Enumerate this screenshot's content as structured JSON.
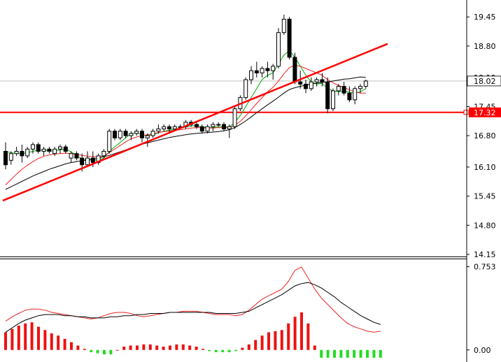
{
  "chart_data": [
    {
      "type": "candlestick",
      "yticks": [
        "19.45",
        "18.80",
        "18.10",
        "17.45",
        "16.80",
        "16.10",
        "15.45",
        "14.80",
        "14.15"
      ],
      "ylim": [
        14.15,
        19.75
      ],
      "current_price": {
        "label": "18.02",
        "value": 18.02
      },
      "horizontal_line": {
        "label": "17.32",
        "value": 17.32,
        "color": "#ff0000"
      },
      "trendline": {
        "color": "#ff0000",
        "from": [
          0,
          15.35
        ],
        "to": [
          70,
          18.85
        ]
      },
      "candles": [
        [
          16.45,
          16.65,
          16.05,
          16.15
        ],
        [
          16.25,
          16.45,
          16.15,
          16.4
        ],
        [
          16.4,
          16.55,
          16.35,
          16.45
        ],
        [
          16.45,
          16.6,
          16.2,
          16.35
        ],
        [
          16.35,
          16.55,
          16.3,
          16.5
        ],
        [
          16.5,
          16.65,
          16.4,
          16.6
        ],
        [
          16.6,
          16.65,
          16.4,
          16.45
        ],
        [
          16.45,
          16.55,
          16.35,
          16.5
        ],
        [
          16.5,
          16.55,
          16.4,
          16.45
        ],
        [
          16.4,
          16.55,
          16.35,
          16.5
        ],
        [
          16.5,
          16.6,
          16.4,
          16.55
        ],
        [
          16.55,
          16.6,
          16.4,
          16.45
        ],
        [
          16.3,
          16.45,
          16.2,
          16.4
        ],
        [
          16.4,
          16.45,
          16.25,
          16.3
        ],
        [
          16.3,
          16.4,
          16.0,
          16.15
        ],
        [
          16.15,
          16.45,
          16.1,
          16.3
        ],
        [
          16.3,
          16.45,
          16.1,
          16.2
        ],
        [
          16.2,
          16.4,
          16.15,
          16.35
        ],
        [
          16.35,
          16.5,
          16.3,
          16.45
        ],
        [
          16.45,
          16.95,
          16.4,
          16.9
        ],
        [
          16.9,
          16.95,
          16.7,
          16.75
        ],
        [
          16.75,
          16.95,
          16.7,
          16.9
        ],
        [
          16.9,
          16.95,
          16.75,
          16.8
        ],
        [
          16.8,
          16.9,
          16.7,
          16.85
        ],
        [
          16.85,
          16.95,
          16.8,
          16.9
        ],
        [
          16.9,
          16.95,
          16.65,
          16.75
        ],
        [
          16.75,
          16.85,
          16.55,
          16.8
        ],
        [
          16.8,
          16.95,
          16.75,
          16.9
        ],
        [
          16.9,
          17.05,
          16.85,
          16.95
        ],
        [
          16.95,
          17.05,
          16.9,
          17.0
        ],
        [
          17.0,
          17.05,
          16.85,
          16.95
        ],
        [
          16.95,
          17.05,
          16.9,
          17.0
        ],
        [
          17.0,
          17.05,
          16.95,
          17.0
        ],
        [
          17.0,
          17.15,
          16.95,
          17.1
        ],
        [
          17.1,
          17.15,
          17.0,
          17.05
        ],
        [
          17.05,
          17.1,
          16.95,
          17.0
        ],
        [
          17.0,
          17.05,
          16.85,
          16.9
        ],
        [
          16.9,
          17.05,
          16.85,
          17.0
        ],
        [
          17.0,
          17.1,
          16.9,
          17.05
        ],
        [
          17.05,
          17.1,
          17.0,
          17.05
        ],
        [
          17.05,
          17.1,
          16.9,
          16.95
        ],
        [
          16.95,
          17.05,
          16.75,
          17.0
        ],
        [
          17.0,
          17.45,
          16.95,
          17.4
        ],
        [
          17.4,
          17.7,
          17.35,
          17.65
        ],
        [
          17.65,
          18.1,
          17.6,
          18.05
        ],
        [
          18.05,
          18.35,
          17.95,
          18.25
        ],
        [
          18.25,
          18.45,
          18.1,
          18.2
        ],
        [
          18.2,
          18.35,
          18.1,
          18.3
        ],
        [
          18.3,
          18.45,
          18.1,
          18.25
        ],
        [
          18.25,
          18.4,
          18.05,
          18.35
        ],
        [
          18.35,
          19.2,
          18.3,
          19.1
        ],
        [
          19.1,
          19.5,
          19.05,
          19.4
        ],
        [
          19.4,
          19.45,
          18.5,
          18.55
        ],
        [
          18.55,
          18.65,
          17.95,
          18.0
        ],
        [
          18.0,
          18.25,
          17.85,
          17.95
        ],
        [
          17.95,
          18.05,
          17.75,
          17.85
        ],
        [
          17.85,
          18.1,
          17.8,
          18.0
        ],
        [
          18.0,
          18.1,
          17.9,
          18.05
        ],
        [
          18.05,
          18.2,
          17.9,
          18.0
        ],
        [
          18.0,
          18.1,
          17.3,
          17.4
        ],
        [
          17.4,
          17.85,
          17.35,
          17.8
        ],
        [
          17.8,
          17.95,
          17.7,
          17.9
        ],
        [
          17.9,
          18.0,
          17.7,
          17.75
        ],
        [
          17.75,
          17.9,
          17.55,
          17.6
        ],
        [
          17.6,
          17.9,
          17.5,
          17.85
        ],
        [
          17.85,
          17.95,
          17.75,
          17.9
        ],
        [
          17.9,
          18.05,
          17.85,
          18.02
        ]
      ],
      "series": [
        {
          "color": "#00aa00",
          "values": [
            16.45,
            16.42,
            16.4,
            16.4,
            16.42,
            16.45,
            16.48,
            16.47,
            16.46,
            16.46,
            16.48,
            16.5,
            16.44,
            16.36,
            16.28,
            16.26,
            16.25,
            16.26,
            16.3,
            16.45,
            16.55,
            16.65,
            16.75,
            16.85,
            16.86,
            16.82,
            16.8,
            16.82,
            16.86,
            16.9,
            16.92,
            16.94,
            16.97,
            16.99,
            17.02,
            17.02,
            17.0,
            16.98,
            16.98,
            17.0,
            17.0,
            16.99,
            17.1,
            17.25,
            17.45,
            17.65,
            17.85,
            18.05,
            18.15,
            18.2,
            18.4,
            18.6,
            18.7,
            18.55,
            18.35,
            18.15,
            18.0,
            17.95,
            17.97,
            17.85,
            17.8,
            17.78,
            17.8,
            17.77,
            17.75,
            17.78,
            17.85
          ]
        },
        {
          "color": "#ee2222",
          "values": [
            15.7,
            15.82,
            15.94,
            16.05,
            16.14,
            16.22,
            16.29,
            16.34,
            16.37,
            16.39,
            16.4,
            16.41,
            16.4,
            16.38,
            16.36,
            16.34,
            16.33,
            16.33,
            16.35,
            16.42,
            16.5,
            16.58,
            16.66,
            16.73,
            16.77,
            16.8,
            16.82,
            16.84,
            16.87,
            16.89,
            16.9,
            16.92,
            16.93,
            16.95,
            16.97,
            16.98,
            16.98,
            16.97,
            16.97,
            16.98,
            16.98,
            16.98,
            17.03,
            17.12,
            17.24,
            17.38,
            17.52,
            17.65,
            17.78,
            17.88,
            18.02,
            18.18,
            18.32,
            18.37,
            18.35,
            18.3,
            18.25,
            18.2,
            18.15,
            18.05,
            17.98,
            17.92,
            17.88,
            17.82,
            17.78,
            17.75,
            17.75
          ]
        },
        {
          "color": "#000000",
          "values": [
            15.6,
            15.66,
            15.72,
            15.78,
            15.84,
            15.9,
            15.95,
            16.0,
            16.05,
            16.09,
            16.13,
            16.17,
            16.2,
            16.22,
            16.24,
            16.26,
            16.28,
            16.3,
            16.33,
            16.36,
            16.4,
            16.44,
            16.48,
            16.53,
            16.57,
            16.61,
            16.64,
            16.67,
            16.7,
            16.73,
            16.76,
            16.78,
            16.8,
            16.82,
            16.84,
            16.85,
            16.86,
            16.87,
            16.88,
            16.89,
            16.91,
            16.93,
            16.98,
            17.05,
            17.13,
            17.22,
            17.31,
            17.4,
            17.49,
            17.57,
            17.66,
            17.75,
            17.83,
            17.87,
            17.9,
            17.93,
            17.95,
            17.97,
            17.99,
            18.0,
            18.02,
            18.04,
            18.06,
            18.07,
            18.09,
            18.11,
            18.1
          ]
        }
      ]
    },
    {
      "type": "bar",
      "yticks": [
        "0.753",
        "0.00"
      ],
      "ylim": [
        -0.09,
        0.82
      ],
      "bars": [
        0.16,
        0.19,
        0.22,
        0.24,
        0.25,
        0.21,
        0.18,
        0.15,
        0.13,
        0.1,
        0.07,
        0.04,
        0.01,
        -0.02,
        -0.03,
        -0.04,
        -0.04,
        0.0,
        0.03,
        0.04,
        0.04,
        0.05,
        0.05,
        0.04,
        0.03,
        0.04,
        0.05,
        0.05,
        0.04,
        0.03,
        0.01,
        -0.01,
        -0.02,
        -0.02,
        -0.02,
        -0.01,
        0.02,
        0.05,
        0.09,
        0.13,
        0.16,
        0.17,
        0.18,
        0.24,
        0.3,
        0.34,
        0.24,
        0.04,
        -0.07,
        -0.07,
        -0.07,
        -0.07,
        -0.07,
        -0.07,
        -0.07,
        -0.07,
        -0.07,
        -0.07
      ],
      "series": [
        {
          "color": "#ee2222",
          "values": [
            0.26,
            0.3,
            0.33,
            0.36,
            0.37,
            0.37,
            0.36,
            0.34,
            0.33,
            0.32,
            0.31,
            0.3,
            0.29,
            0.28,
            0.29,
            0.31,
            0.33,
            0.34,
            0.34,
            0.33,
            0.31,
            0.3,
            0.31,
            0.32,
            0.33,
            0.34,
            0.34,
            0.35,
            0.35,
            0.35,
            0.34,
            0.33,
            0.32,
            0.32,
            0.32,
            0.31,
            0.32,
            0.36,
            0.41,
            0.46,
            0.49,
            0.52,
            0.55,
            0.62,
            0.72,
            0.75,
            0.65,
            0.55,
            0.47,
            0.41,
            0.35,
            0.29,
            0.24,
            0.21,
            0.19,
            0.17,
            0.16,
            0.17
          ]
        },
        {
          "color": "#000000",
          "values": [
            0.16,
            0.2,
            0.24,
            0.27,
            0.29,
            0.31,
            0.32,
            0.32,
            0.32,
            0.31,
            0.31,
            0.3,
            0.3,
            0.29,
            0.29,
            0.29,
            0.3,
            0.3,
            0.31,
            0.31,
            0.32,
            0.32,
            0.33,
            0.33,
            0.33,
            0.34,
            0.34,
            0.34,
            0.34,
            0.34,
            0.34,
            0.34,
            0.33,
            0.33,
            0.33,
            0.33,
            0.34,
            0.35,
            0.38,
            0.41,
            0.44,
            0.47,
            0.5,
            0.54,
            0.58,
            0.6,
            0.61,
            0.59,
            0.56,
            0.52,
            0.48,
            0.43,
            0.39,
            0.35,
            0.31,
            0.28,
            0.25,
            0.23
          ]
        }
      ]
    }
  ]
}
